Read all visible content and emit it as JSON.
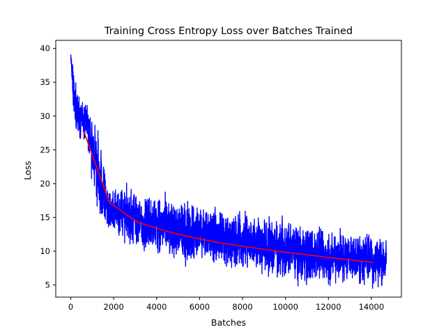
{
  "chart_data": {
    "type": "line",
    "title": "Training Cross Entropy Loss over Batches Trained",
    "xlabel": "Batches",
    "ylabel": "Loss",
    "xlim": [
      -700,
      15400
    ],
    "ylim": [
      3.2,
      41.2
    ],
    "xticks": [
      0,
      2000,
      4000,
      6000,
      8000,
      10000,
      12000,
      14000
    ],
    "yticks": [
      5,
      10,
      15,
      20,
      25,
      30,
      35,
      40
    ],
    "grid": false,
    "legend": "none",
    "series": [
      {
        "kind": "raw",
        "color": "#0000ff",
        "x_start": 0,
        "x_end": 14700,
        "envelope_x": [
          0,
          100,
          300,
          500,
          800,
          1000,
          1300,
          1500,
          1800,
          2500,
          3500,
          5000,
          6500,
          8000,
          9500,
          11000,
          12500,
          14000,
          14700
        ],
        "envelope_upper": [
          39.5,
          37.5,
          33.5,
          32.5,
          31.5,
          29.0,
          26.0,
          22.5,
          19.5,
          19.0,
          18.0,
          17.0,
          16.0,
          15.5,
          14.5,
          13.0,
          12.5,
          12.0,
          11.5
        ],
        "envelope_lower": [
          38.0,
          31.0,
          27.5,
          27.0,
          25.0,
          21.0,
          16.0,
          14.5,
          13.0,
          11.5,
          10.5,
          9.0,
          8.5,
          7.5,
          6.5,
          6.0,
          5.5,
          5.2,
          5.0
        ]
      },
      {
        "kind": "smoothed",
        "color": "#ff0000",
        "x": [
          600,
          1800,
          3100,
          4400,
          5700,
          7000,
          8300,
          9600,
          10900,
          12200,
          14100
        ],
        "y": [
          27.8,
          17.2,
          14.3,
          13.0,
          12.0,
          11.2,
          10.6,
          10.0,
          9.5,
          9.0,
          8.3
        ]
      }
    ]
  }
}
